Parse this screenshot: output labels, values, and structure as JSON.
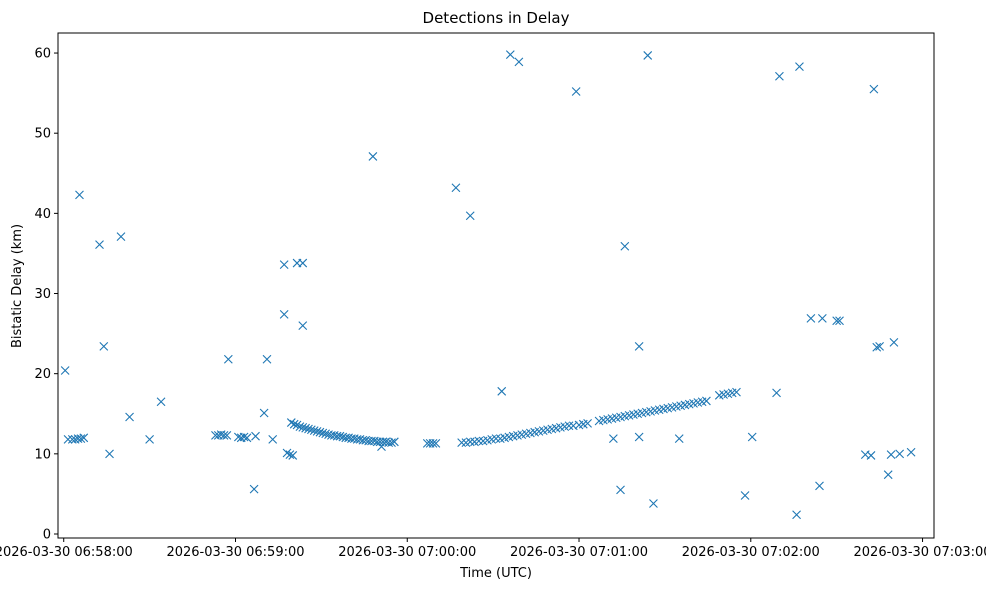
{
  "chart_data": {
    "type": "scatter",
    "title": "Detections in Delay",
    "xlabel": "Time (UTC)",
    "ylabel": "Bistatic Delay (km)",
    "marker": "x",
    "color": "#1f77b4",
    "xlim": [
      "2026-03-30 06:57:58",
      "2026-03-30 07:03:04"
    ],
    "ylim": [
      -0.5,
      62.5
    ],
    "x_ticks": [
      "2026-03-30 06:58:00",
      "2026-03-30 06:59:00",
      "2026-03-30 07:00:00",
      "2026-03-30 07:01:00",
      "2026-03-30 07:02:00",
      "2026-03-30 07:03:00"
    ],
    "y_ticks": [
      0,
      10,
      20,
      30,
      40,
      50,
      60
    ],
    "grid": false,
    "series": [
      {
        "points": [
          [
            "06:58:00.5",
            20.4
          ],
          [
            "06:58:01.5",
            11.8
          ],
          [
            "06:58:03",
            11.8
          ],
          [
            "06:58:04",
            11.8
          ],
          [
            "06:58:05",
            11.9
          ],
          [
            "06:58:06",
            11.9
          ],
          [
            "06:58:07",
            12.0
          ],
          [
            "06:58:05.5",
            42.3
          ],
          [
            "06:58:12.5",
            36.1
          ],
          [
            "06:58:14",
            23.4
          ],
          [
            "06:58:16",
            10.0
          ],
          [
            "06:58:20",
            37.1
          ],
          [
            "06:58:23",
            14.6
          ],
          [
            "06:58:30",
            11.8
          ],
          [
            "06:58:34",
            16.5
          ],
          [
            "06:58:53",
            12.3
          ],
          [
            "06:58:54",
            12.3
          ],
          [
            "06:58:55",
            12.4
          ],
          [
            "06:58:56",
            12.3
          ],
          [
            "06:58:57",
            12.3
          ],
          [
            "06:58:57.5",
            21.8
          ],
          [
            "06:59:01",
            12.1
          ],
          [
            "06:59:02",
            12.0
          ],
          [
            "06:59:03",
            12.1
          ],
          [
            "06:59:04",
            12.0
          ],
          [
            "06:59:06.5",
            5.6
          ],
          [
            "06:59:07",
            12.2
          ],
          [
            "06:59:10",
            15.1
          ],
          [
            "06:59:11",
            21.8
          ],
          [
            "06:59:13",
            11.8
          ],
          [
            "06:59:17",
            33.6
          ],
          [
            "06:59:17",
            27.4
          ],
          [
            "06:59:18",
            10.1
          ],
          [
            "06:59:19",
            9.9
          ],
          [
            "06:59:20",
            9.8
          ],
          [
            "06:59:19.5",
            13.9
          ],
          [
            "06:59:20.5",
            13.7
          ],
          [
            "06:59:21.5",
            13.6
          ],
          [
            "06:59:22.5",
            13.4
          ],
          [
            "06:59:21.5",
            33.8
          ],
          [
            "06:59:23.5",
            33.8
          ],
          [
            "06:59:23.5",
            26.0
          ],
          [
            "06:59:23.5",
            13.3
          ],
          [
            "06:59:24.5",
            13.2
          ],
          [
            "06:59:25.5",
            13.1
          ],
          [
            "06:59:26.5",
            13.0
          ],
          [
            "06:59:27.5",
            12.9
          ],
          [
            "06:59:28.5",
            12.8
          ],
          [
            "06:59:29.5",
            12.7
          ],
          [
            "06:59:30.5",
            12.6
          ],
          [
            "06:59:31.5",
            12.5
          ],
          [
            "06:59:32.5",
            12.4
          ],
          [
            "06:59:33.5",
            12.3
          ],
          [
            "06:59:34.5",
            12.3
          ],
          [
            "06:59:35.5",
            12.2
          ],
          [
            "06:59:36.5",
            12.2
          ],
          [
            "06:59:37.5",
            12.1
          ],
          [
            "06:59:38.5",
            12.0
          ],
          [
            "06:59:39.5",
            12.0
          ],
          [
            "06:59:40.5",
            11.9
          ],
          [
            "06:59:41.5",
            11.9
          ],
          [
            "06:59:42.5",
            11.8
          ],
          [
            "06:59:43.5",
            11.8
          ],
          [
            "06:59:44.5",
            11.7
          ],
          [
            "06:59:45.5",
            11.7
          ],
          [
            "06:59:46.5",
            11.6
          ],
          [
            "06:59:47.5",
            11.6
          ],
          [
            "06:59:48.5",
            11.6
          ],
          [
            "06:59:49.5",
            11.5
          ],
          [
            "06:59:50.5",
            11.5
          ],
          [
            "06:59:51.5",
            11.5
          ],
          [
            "06:59:52.5",
            11.5
          ],
          [
            "06:59:53.5",
            11.4
          ],
          [
            "06:59:54.5",
            11.4
          ],
          [
            "06:59:55.5",
            11.5
          ],
          [
            "06:59:48",
            47.1
          ],
          [
            "06:59:51",
            10.9
          ],
          [
            "07:00:07",
            11.3
          ],
          [
            "07:00:08",
            11.3
          ],
          [
            "07:00:09",
            11.3
          ],
          [
            "07:00:10",
            11.3
          ],
          [
            "07:00:17",
            43.2
          ],
          [
            "07:00:22",
            39.7
          ],
          [
            "07:00:19",
            11.4
          ],
          [
            "07:00:20.5",
            11.4
          ],
          [
            "07:00:22",
            11.5
          ],
          [
            "07:00:23.5",
            11.5
          ],
          [
            "07:00:25",
            11.6
          ],
          [
            "07:00:26.5",
            11.6
          ],
          [
            "07:00:28",
            11.7
          ],
          [
            "07:00:29.5",
            11.8
          ],
          [
            "07:00:31",
            11.9
          ],
          [
            "07:00:32.5",
            11.9
          ],
          [
            "07:00:34",
            12.0
          ],
          [
            "07:00:35.5",
            12.1
          ],
          [
            "07:00:37",
            12.2
          ],
          [
            "07:00:38.5",
            12.3
          ],
          [
            "07:00:40",
            12.4
          ],
          [
            "07:00:41.5",
            12.5
          ],
          [
            "07:00:43",
            12.6
          ],
          [
            "07:00:44.5",
            12.7
          ],
          [
            "07:00:46",
            12.8
          ],
          [
            "07:00:47.5",
            12.9
          ],
          [
            "07:00:49",
            13.0
          ],
          [
            "07:00:50.5",
            13.1
          ],
          [
            "07:00:52",
            13.2
          ],
          [
            "07:00:53.5",
            13.3
          ],
          [
            "07:00:55",
            13.4
          ],
          [
            "07:00:56.5",
            13.5
          ],
          [
            "07:00:58",
            13.5
          ],
          [
            "07:01:00",
            13.6
          ],
          [
            "07:01:01.5",
            13.7
          ],
          [
            "07:01:03",
            13.8
          ],
          [
            "07:00:33",
            17.8
          ],
          [
            "07:00:36",
            59.8
          ],
          [
            "07:00:39",
            58.9
          ],
          [
            "07:00:59",
            55.2
          ],
          [
            "07:01:07",
            14.1
          ],
          [
            "07:01:08.5",
            14.2
          ],
          [
            "07:01:10",
            14.3
          ],
          [
            "07:01:11.5",
            14.4
          ],
          [
            "07:01:13",
            14.5
          ],
          [
            "07:01:14.5",
            14.6
          ],
          [
            "07:01:16",
            14.7
          ],
          [
            "07:01:17.5",
            14.8
          ],
          [
            "07:01:19",
            14.9
          ],
          [
            "07:01:20.5",
            15.0
          ],
          [
            "07:01:22",
            15.1
          ],
          [
            "07:01:23.5",
            15.2
          ],
          [
            "07:01:25",
            15.3
          ],
          [
            "07:01:26.5",
            15.4
          ],
          [
            "07:01:28",
            15.5
          ],
          [
            "07:01:29.5",
            15.6
          ],
          [
            "07:01:31",
            15.7
          ],
          [
            "07:01:32.5",
            15.8
          ],
          [
            "07:01:34",
            15.9
          ],
          [
            "07:01:35.5",
            16.0
          ],
          [
            "07:01:37",
            16.1
          ],
          [
            "07:01:38.5",
            16.2
          ],
          [
            "07:01:40",
            16.3
          ],
          [
            "07:01:41.5",
            16.4
          ],
          [
            "07:01:43",
            16.5
          ],
          [
            "07:01:44.5",
            16.6
          ],
          [
            "07:01:12",
            11.9
          ],
          [
            "07:01:14.5",
            5.5
          ],
          [
            "07:01:16",
            35.9
          ],
          [
            "07:01:21",
            23.4
          ],
          [
            "07:01:21",
            12.1
          ],
          [
            "07:01:24",
            59.7
          ],
          [
            "07:01:26",
            3.8
          ],
          [
            "07:01:35",
            11.9
          ],
          [
            "07:01:49",
            17.3
          ],
          [
            "07:01:50.5",
            17.4
          ],
          [
            "07:01:52",
            17.5
          ],
          [
            "07:01:53.5",
            17.6
          ],
          [
            "07:01:55",
            17.7
          ],
          [
            "07:01:58",
            4.8
          ],
          [
            "07:02:00.5",
            12.1
          ],
          [
            "07:02:09",
            17.6
          ],
          [
            "07:02:10",
            57.1
          ],
          [
            "07:02:16",
            2.4
          ],
          [
            "07:02:17",
            58.3
          ],
          [
            "07:02:21",
            26.9
          ],
          [
            "07:02:24",
            6.0
          ],
          [
            "07:02:25",
            26.9
          ],
          [
            "07:02:30",
            26.6
          ],
          [
            "07:02:31",
            26.6
          ],
          [
            "07:02:40",
            9.9
          ],
          [
            "07:02:42",
            9.8
          ],
          [
            "07:02:43",
            55.5
          ],
          [
            "07:02:44",
            23.3
          ],
          [
            "07:02:45",
            23.4
          ],
          [
            "07:02:48",
            7.4
          ],
          [
            "07:02:49",
            9.9
          ],
          [
            "07:02:50",
            23.9
          ],
          [
            "07:02:52",
            10.0
          ],
          [
            "07:02:56",
            10.2
          ]
        ]
      }
    ]
  }
}
